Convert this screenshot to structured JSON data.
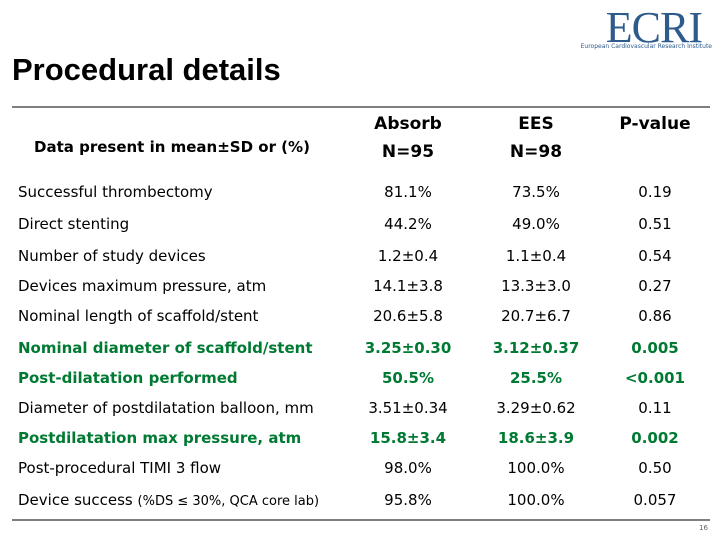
{
  "logo": {
    "name": "ECRI",
    "subtitle": "European Cardiovascular Research Institute"
  },
  "header": {
    "title": "Procedural details"
  },
  "table": {
    "header": {
      "label": "Data present in mean±SD or (%)",
      "columns": [
        {
          "name": "Absorb",
          "n": "N=95"
        },
        {
          "name": "EES",
          "n": "N=98"
        },
        {
          "name": "P-value"
        }
      ]
    },
    "rows": [
      {
        "label": "Successful thrombectomy",
        "values": [
          "81.1%",
          "73.5%",
          "0.19"
        ]
      },
      {
        "label": "Direct stenting",
        "values": [
          "44.2%",
          "49.0%",
          "0.51"
        ]
      },
      {
        "label": "Number of study devices",
        "values": [
          "1.2±0.4",
          "1.1±0.4",
          "0.54"
        ]
      },
      {
        "label": "Devices maximum pressure, atm",
        "values": [
          "14.1±3.8",
          "13.3±3.0",
          "0.27"
        ]
      },
      {
        "label": "Nominal length of scaffold/stent",
        "values": [
          "20.6±5.8",
          "20.7±6.7",
          "0.86"
        ]
      },
      {
        "label": "Nominal diameter of scaffold/stent",
        "values": [
          "3.25±0.30",
          "3.12±0.37",
          "0.005"
        ]
      },
      {
        "label": "Post-dilatation performed",
        "values": [
          "50.5%",
          "25.5%",
          "<0.001"
        ]
      },
      {
        "label": "Diameter of postdilatation  balloon, mm",
        "values": [
          "3.51±0.34",
          "3.29±0.62",
          "0.11"
        ]
      },
      {
        "label": "Postdilatation max pressure, atm",
        "values": [
          "15.8±3.4",
          "18.6±3.9",
          "0.002"
        ]
      },
      {
        "label": "Post-procedural TIMI 3 flow",
        "values": [
          "98.0%",
          "100.0%",
          "0.50"
        ]
      },
      {
        "label": "Device success",
        "note": "(%DS ≤ 30%, QCA core lab)",
        "values": [
          "95.8%",
          "100.0%",
          "0.057"
        ]
      }
    ]
  },
  "footer": {
    "page": "16"
  }
}
